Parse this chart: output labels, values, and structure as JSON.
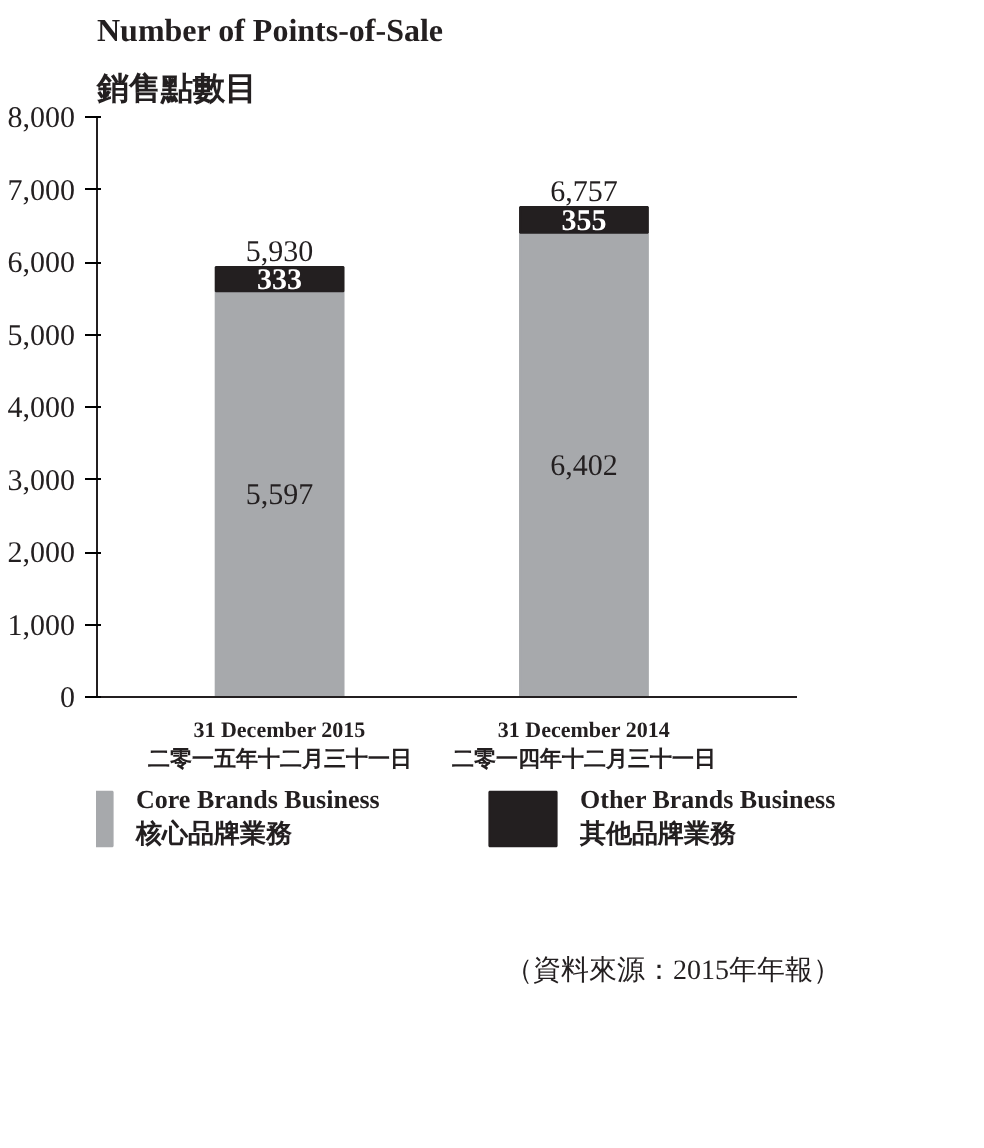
{
  "chart_data": {
    "type": "bar",
    "title": "Number of Points-of-Sale",
    "subtitle": "銷售點數目",
    "categories": [
      "31 December 2015\n二零一五年十二月三十一日",
      "31 December 2014\n二零一四年十二月三十一日"
    ],
    "stacked": true,
    "series": [
      {
        "name": "Core Brands Business\n核心品牌業務",
        "color": "#a7a9ac",
        "values": [
          5597,
          6402
        ],
        "value_labels": [
          "5,597",
          "6,402"
        ]
      },
      {
        "name": "Other Brands Business\n其他品牌業務",
        "color": "#231f20",
        "values": [
          333,
          355
        ],
        "value_labels": [
          "333",
          "355"
        ]
      }
    ],
    "totals": [
      "5,930",
      "6,757"
    ],
    "ylim": [
      0,
      8000
    ],
    "yticks": [
      {
        "value": 0,
        "label": "0"
      },
      {
        "value": 1000,
        "label": "1,000"
      },
      {
        "value": 2000,
        "label": "2,000"
      },
      {
        "value": 3000,
        "label": "3,000"
      },
      {
        "value": 4000,
        "label": "4,000"
      },
      {
        "value": 5000,
        "label": "5,000"
      },
      {
        "value": 6000,
        "label": "6,000"
      },
      {
        "value": 7000,
        "label": "7,000"
      },
      {
        "value": 8000,
        "label": "8,000"
      }
    ],
    "grid": false,
    "legend": "bottom",
    "annotations": [
      "（資料來源：2015年年報）"
    ]
  }
}
